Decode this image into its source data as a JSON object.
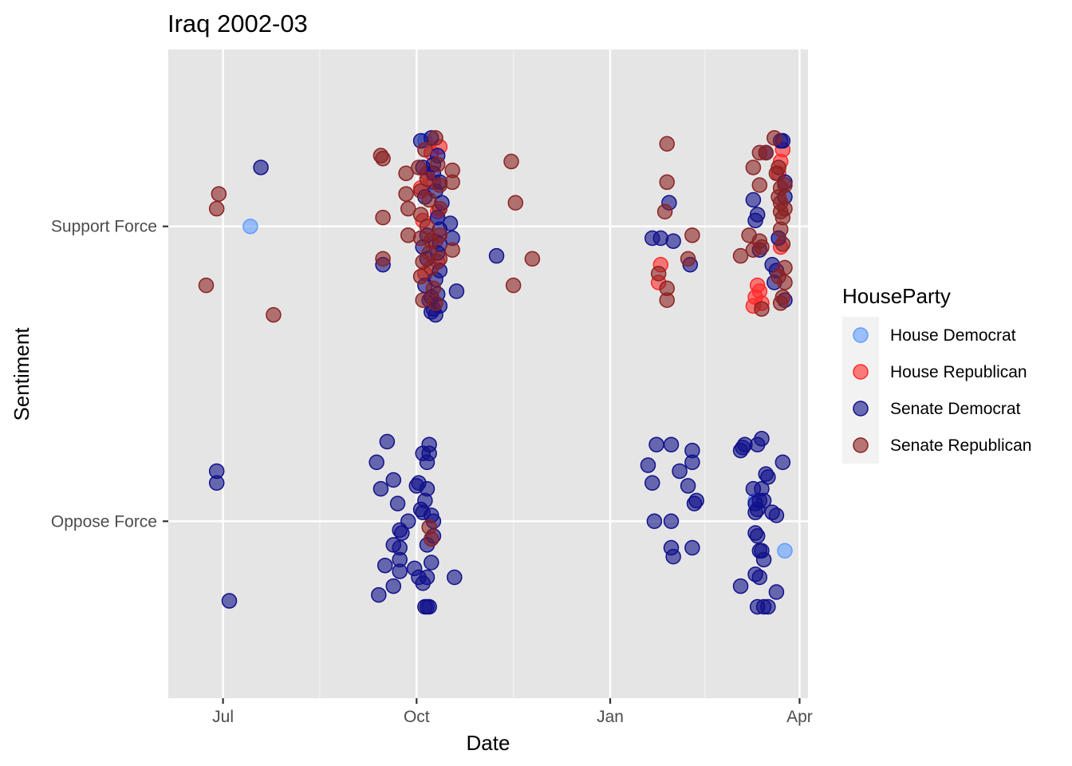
{
  "chart_data": {
    "type": "scatter",
    "title": "Iraq 2002-03",
    "xlabel": "Date",
    "ylabel": "Sentiment",
    "x_ticks": [
      {
        "label": "Jul",
        "date": "2002-07-01"
      },
      {
        "label": "Oct",
        "date": "2002-10-01"
      },
      {
        "label": "Jan",
        "date": "2003-01-01"
      },
      {
        "label": "Apr",
        "date": "2003-04-01"
      }
    ],
    "xlim": [
      "2002-06-05",
      "2003-04-05"
    ],
    "y_categories": [
      "Oppose Force",
      "Support Force"
    ],
    "ylim": [
      -0.6,
      1.6
    ],
    "grid": true,
    "legend": {
      "title": "HouseParty",
      "position": "right"
    },
    "series": [
      {
        "name": "House Democrat",
        "color": "#619cff",
        "points": [
          [
            "2002-07-14",
            1.0
          ],
          [
            "2002-10-05",
            1.29
          ],
          [
            "2002-10-11",
            1.03
          ],
          [
            "2003-03-11",
            0.07
          ],
          [
            "2003-03-22",
            0.96
          ],
          [
            "2003-03-25",
            -0.1
          ]
        ]
      },
      {
        "name": "House Republican",
        "color": "#ff2a2a",
        "points": [
          [
            "2002-10-03",
            1.13
          ],
          [
            "2002-10-04",
            1.02
          ],
          [
            "2002-10-05",
            0.84
          ],
          [
            "2002-10-06",
            1.18
          ],
          [
            "2002-10-08",
            1.25
          ],
          [
            "2002-10-09",
            1.15
          ],
          [
            "2002-10-10",
            0.95
          ],
          [
            "2002-10-11",
            1.05
          ],
          [
            "2002-10-12",
            1.27
          ],
          [
            "2002-10-11",
            0.88
          ],
          [
            "2003-01-25",
            0.87
          ],
          [
            "2003-01-24",
            0.81
          ],
          [
            "2003-03-11",
            0.76
          ],
          [
            "2003-03-12",
            0.8
          ],
          [
            "2003-03-13",
            0.78
          ],
          [
            "2003-03-10",
            0.73
          ],
          [
            "2003-03-14",
            0.74
          ],
          [
            "2003-03-23",
            1.22
          ],
          [
            "2003-03-24",
            1.26
          ],
          [
            "2003-03-22",
            1.18
          ],
          [
            "2003-03-23",
            0.93
          ]
        ]
      },
      {
        "name": "Senate Democrat",
        "color": "#11118a",
        "points": [
          [
            "2002-07-19",
            1.2
          ],
          [
            "2002-09-15",
            0.87
          ],
          [
            "2002-10-03",
            1.29
          ],
          [
            "2002-10-04",
            1.2
          ],
          [
            "2002-10-05",
            1.1
          ],
          [
            "2002-10-06",
            0.97
          ],
          [
            "2002-10-04",
            0.93
          ],
          [
            "2002-10-05",
            0.8
          ],
          [
            "2002-10-07",
            0.75
          ],
          [
            "2002-10-08",
            0.71
          ],
          [
            "2002-10-09",
            0.72
          ],
          [
            "2002-10-10",
            0.7
          ],
          [
            "2002-10-11",
            0.77
          ],
          [
            "2002-10-10",
            0.82
          ],
          [
            "2002-10-12",
            0.85
          ],
          [
            "2002-10-11",
            0.91
          ],
          [
            "2002-10-12",
            0.99
          ],
          [
            "2002-10-13",
            1.08
          ],
          [
            "2002-10-12",
            1.15
          ],
          [
            "2002-10-09",
            1.21
          ],
          [
            "2002-10-11",
            1.24
          ],
          [
            "2002-10-08",
            1.3
          ],
          [
            "2002-10-09",
            1.18
          ],
          [
            "2002-10-10",
            1.12
          ],
          [
            "2002-10-11",
            1.03
          ],
          [
            "2002-10-06",
            0.89
          ],
          [
            "2002-10-12",
            0.94
          ],
          [
            "2002-10-12",
            0.73
          ],
          [
            "2002-10-08",
            0.76
          ],
          [
            "2002-10-17",
            1.01
          ],
          [
            "2002-10-18",
            0.96
          ],
          [
            "2002-10-20",
            0.78
          ],
          [
            "2002-11-08",
            0.9
          ],
          [
            "2003-01-21",
            0.96
          ],
          [
            "2003-01-25",
            0.96
          ],
          [
            "2003-01-29",
            1.08
          ],
          [
            "2003-01-31",
            0.95
          ],
          [
            "2003-02-08",
            0.87
          ],
          [
            "2003-03-10",
            1.09
          ],
          [
            "2003-03-11",
            1.02
          ],
          [
            "2003-03-12",
            1.04
          ],
          [
            "2003-03-13",
            0.92
          ],
          [
            "2003-03-16",
            1.25
          ],
          [
            "2003-03-19",
            0.87
          ],
          [
            "2003-03-20",
            0.81
          ],
          [
            "2003-03-22",
            0.96
          ],
          [
            "2003-03-23",
            1.29
          ],
          [
            "2003-03-24",
            1.29
          ],
          [
            "2003-03-25",
            1.15
          ],
          [
            "2003-03-25",
            1.1
          ],
          [
            "2003-03-25",
            0.75
          ],
          [
            "2003-03-21",
            0.85
          ],
          [
            "2002-06-28",
            0.17
          ],
          [
            "2002-06-28",
            0.13
          ],
          [
            "2002-07-04",
            -0.27
          ],
          [
            "2002-09-12",
            0.2
          ],
          [
            "2002-09-14",
            0.11
          ],
          [
            "2002-09-17",
            0.27
          ],
          [
            "2002-09-20",
            0.14
          ],
          [
            "2002-09-22",
            0.06
          ],
          [
            "2002-09-23",
            -0.03
          ],
          [
            "2002-09-24",
            -0.04
          ],
          [
            "2002-09-27",
            0.0
          ],
          [
            "2002-09-20",
            -0.08
          ],
          [
            "2002-09-23",
            -0.09
          ],
          [
            "2002-09-23",
            -0.13
          ],
          [
            "2002-09-16",
            -0.15
          ],
          [
            "2002-09-13",
            -0.25
          ],
          [
            "2002-09-20",
            -0.22
          ],
          [
            "2002-09-23",
            -0.17
          ],
          [
            "2002-09-30",
            -0.16
          ],
          [
            "2002-10-01",
            0.12
          ],
          [
            "2002-10-02",
            0.13
          ],
          [
            "2002-10-03",
            0.04
          ],
          [
            "2002-10-04",
            0.03
          ],
          [
            "2002-10-05",
            0.07
          ],
          [
            "2002-10-06",
            0.11
          ],
          [
            "2002-10-04",
            0.23
          ],
          [
            "2002-10-06",
            0.2
          ],
          [
            "2002-10-07",
            0.26
          ],
          [
            "2002-10-07",
            0.23
          ],
          [
            "2002-10-08",
            0.02
          ],
          [
            "2002-10-09",
            0.0
          ],
          [
            "2002-10-09",
            -0.05
          ],
          [
            "2002-10-06",
            -0.08
          ],
          [
            "2002-10-08",
            -0.14
          ],
          [
            "2002-10-02",
            -0.19
          ],
          [
            "2002-10-04",
            -0.21
          ],
          [
            "2002-10-05",
            -0.29
          ],
          [
            "2002-10-06",
            -0.29
          ],
          [
            "2002-10-07",
            -0.29
          ],
          [
            "2002-10-06",
            -0.19
          ],
          [
            "2002-10-19",
            -0.19
          ],
          [
            "2003-01-19",
            0.19
          ],
          [
            "2003-01-21",
            0.13
          ],
          [
            "2003-01-23",
            0.26
          ],
          [
            "2003-01-22",
            0.0
          ],
          [
            "2003-01-30",
            0.26
          ],
          [
            "2003-02-03",
            0.17
          ],
          [
            "2003-02-07",
            0.12
          ],
          [
            "2003-02-09",
            0.24
          ],
          [
            "2003-02-09",
            0.2
          ],
          [
            "2003-02-11",
            0.07
          ],
          [
            "2003-02-10",
            0.06
          ],
          [
            "2003-01-30",
            0.0
          ],
          [
            "2003-01-30",
            -0.09
          ],
          [
            "2003-01-31",
            -0.12
          ],
          [
            "2003-02-09",
            -0.09
          ],
          [
            "2003-03-05",
            0.25
          ],
          [
            "2003-03-06",
            0.26
          ],
          [
            "2003-03-04",
            0.24
          ],
          [
            "2003-03-12",
            0.26
          ],
          [
            "2003-03-14",
            0.28
          ],
          [
            "2003-03-16",
            0.16
          ],
          [
            "2003-03-17",
            0.15
          ],
          [
            "2003-03-10",
            0.11
          ],
          [
            "2003-03-14",
            0.11
          ],
          [
            "2003-03-11",
            0.06
          ],
          [
            "2003-03-13",
            0.07
          ],
          [
            "2003-03-15",
            0.07
          ],
          [
            "2003-03-12",
            0.04
          ],
          [
            "2003-03-11",
            0.03
          ],
          [
            "2003-03-19",
            0.03
          ],
          [
            "2003-03-21",
            0.02
          ],
          [
            "2003-03-24",
            0.2
          ],
          [
            "2003-03-11",
            -0.04
          ],
          [
            "2003-03-12",
            -0.05
          ],
          [
            "2003-03-13",
            -0.1
          ],
          [
            "2003-03-14",
            -0.1
          ],
          [
            "2003-03-15",
            -0.13
          ],
          [
            "2003-03-11",
            -0.18
          ],
          [
            "2003-03-13",
            -0.19
          ],
          [
            "2003-03-04",
            -0.22
          ],
          [
            "2003-03-12",
            -0.29
          ],
          [
            "2003-03-15",
            -0.29
          ],
          [
            "2003-03-17",
            -0.29
          ],
          [
            "2003-03-21",
            -0.24
          ]
        ]
      },
      {
        "name": "Senate Republican",
        "color": "#8b2222",
        "points": [
          [
            "2002-06-23",
            0.8
          ],
          [
            "2002-06-28",
            1.06
          ],
          [
            "2002-06-29",
            1.11
          ],
          [
            "2002-07-25",
            0.7
          ],
          [
            "2002-09-14",
            1.24
          ],
          [
            "2002-09-15",
            1.23
          ],
          [
            "2002-09-15",
            1.03
          ],
          [
            "2002-09-15",
            0.89
          ],
          [
            "2002-09-26",
            1.18
          ],
          [
            "2002-09-26",
            1.11
          ],
          [
            "2002-09-27",
            1.06
          ],
          [
            "2002-09-27",
            0.97
          ],
          [
            "2002-10-02",
            1.2
          ],
          [
            "2002-10-03",
            1.12
          ],
          [
            "2002-10-03",
            1.04
          ],
          [
            "2002-10-03",
            0.96
          ],
          [
            "2002-10-04",
            0.88
          ],
          [
            "2002-10-03",
            0.83
          ],
          [
            "2002-10-04",
            0.75
          ],
          [
            "2002-10-05",
            1.26
          ],
          [
            "2002-10-06",
            1.16
          ],
          [
            "2002-10-07",
            1.09
          ],
          [
            "2002-10-07",
            0.91
          ],
          [
            "2002-10-08",
            0.86
          ],
          [
            "2002-10-09",
            0.79
          ],
          [
            "2002-10-10",
            0.74
          ],
          [
            "2002-10-10",
            1.3
          ],
          [
            "2002-10-11",
            1.21
          ],
          [
            "2002-10-12",
            1.14
          ],
          [
            "2002-10-12",
            1.06
          ],
          [
            "2002-10-12",
            0.97
          ],
          [
            "2002-10-12",
            0.89
          ],
          [
            "2002-10-08",
            0.95
          ],
          [
            "2002-10-06",
            1.0
          ],
          [
            "2002-10-18",
            1.19
          ],
          [
            "2002-10-18",
            1.15
          ],
          [
            "2002-10-18",
            0.92
          ],
          [
            "2002-11-15",
            1.22
          ],
          [
            "2002-11-16",
            0.8
          ],
          [
            "2002-11-17",
            1.08
          ],
          [
            "2002-11-25",
            0.89
          ],
          [
            "2002-10-07",
            -0.02
          ],
          [
            "2002-10-08",
            -0.06
          ],
          [
            "2003-01-24",
            0.84
          ],
          [
            "2003-01-28",
            1.28
          ],
          [
            "2003-01-28",
            1.15
          ],
          [
            "2003-01-27",
            1.05
          ],
          [
            "2003-01-28",
            0.79
          ],
          [
            "2003-01-28",
            0.75
          ],
          [
            "2003-02-07",
            0.89
          ],
          [
            "2003-02-09",
            0.97
          ],
          [
            "2003-03-04",
            0.9
          ],
          [
            "2003-03-08",
            0.97
          ],
          [
            "2003-03-10",
            0.92
          ],
          [
            "2003-03-13",
            0.95
          ],
          [
            "2003-03-14",
            0.93
          ],
          [
            "2003-03-10",
            1.2
          ],
          [
            "2003-03-13",
            1.25
          ],
          [
            "2003-03-16",
            1.25
          ],
          [
            "2003-03-20",
            1.3
          ],
          [
            "2003-03-21",
            1.18
          ],
          [
            "2003-03-22",
            1.2
          ],
          [
            "2003-03-23",
            1.13
          ],
          [
            "2003-03-22",
            1.1
          ],
          [
            "2003-03-23",
            1.08
          ],
          [
            "2003-03-23",
            1.05
          ],
          [
            "2003-03-24",
            1.03
          ],
          [
            "2003-03-25",
            1.06
          ],
          [
            "2003-03-25",
            1.14
          ],
          [
            "2003-03-23",
            0.99
          ],
          [
            "2003-03-24",
            0.94
          ],
          [
            "2003-03-25",
            0.86
          ],
          [
            "2003-03-25",
            0.81
          ],
          [
            "2003-03-23",
            0.74
          ],
          [
            "2003-03-24",
            0.76
          ],
          [
            "2003-03-22",
            0.83
          ],
          [
            "2003-03-14",
            0.72
          ],
          [
            "2003-03-13",
            1.14
          ]
        ]
      }
    ]
  }
}
